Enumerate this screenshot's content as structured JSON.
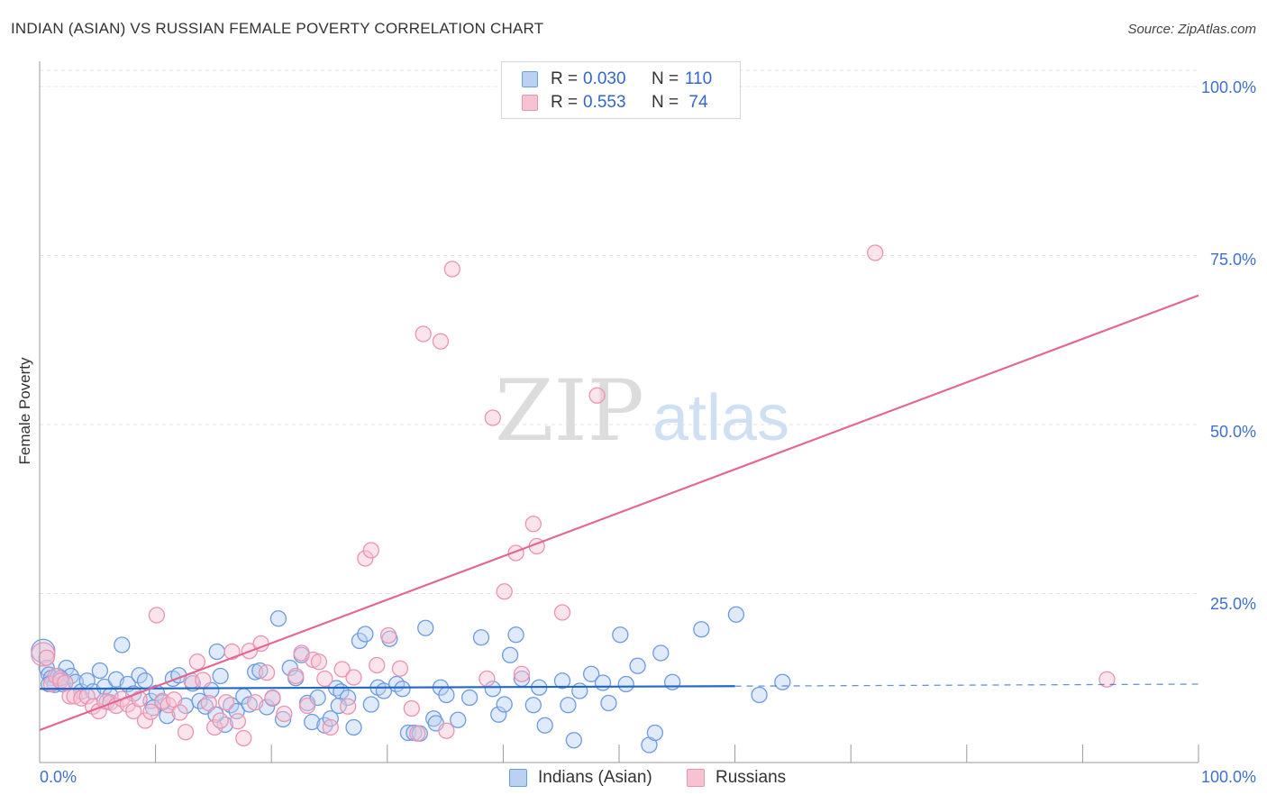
{
  "header": {
    "title": "INDIAN (ASIAN) VS RUSSIAN FEMALE POVERTY CORRELATION CHART",
    "source": "Source: ZipAtlas.com"
  },
  "watermark": {
    "zip": "ZIP",
    "atlas": "atlas"
  },
  "legend": {
    "rows": [
      {
        "r_label": "R =",
        "r_value": "0.030",
        "n_label": "N =",
        "n_value": "110"
      },
      {
        "r_label": "R =",
        "r_value": "0.553",
        "n_label": "N =",
        "n_value": "74"
      }
    ]
  },
  "chart_data": {
    "type": "scatter",
    "ylabel": "Female Poverty",
    "xlim": [
      0,
      100
    ],
    "ylim": [
      0,
      100
    ],
    "x_tick_labels": [
      "0.0%",
      "100.0%"
    ],
    "y_tick_labels": [
      "100.0%",
      "75.0%",
      "50.0%",
      "25.0%"
    ],
    "y_ticks": [
      100,
      75,
      50,
      25
    ],
    "grid": true,
    "legend_position": "top-center",
    "series": [
      {
        "name": "Indians (Asian)",
        "color": "#6e9be0",
        "fill": "#b9d1f3",
        "trend": {
          "x0": 0,
          "y0": 10.9,
          "x1": 60,
          "y1": 11.3,
          "dashed_to_x": 100,
          "dashed_to_y": 11.6,
          "color": "#1f66c9"
        },
        "points": [
          [
            0.3,
            16.5
          ],
          [
            0.6,
            14
          ],
          [
            0.8,
            13
          ],
          [
            1,
            12.5
          ],
          [
            1.3,
            11.5
          ],
          [
            1.6,
            12.8
          ],
          [
            2,
            11.6
          ],
          [
            2.3,
            14
          ],
          [
            2.7,
            12.8
          ],
          [
            3.1,
            11.9
          ],
          [
            3.6,
            10.5
          ],
          [
            4.1,
            12.1
          ],
          [
            4.6,
            10.5
          ],
          [
            5.2,
            13.6
          ],
          [
            5.6,
            11.2
          ],
          [
            6.1,
            9.9
          ],
          [
            6.6,
            12.3
          ],
          [
            7.1,
            17.4
          ],
          [
            7.6,
            11.6
          ],
          [
            8.1,
            10.2
          ],
          [
            8.6,
            12.9
          ],
          [
            9.1,
            12.1
          ],
          [
            9.6,
            9.1
          ],
          [
            10.1,
            10.3
          ],
          [
            10.6,
            8.9
          ],
          [
            11,
            6.9
          ],
          [
            11.5,
            12.4
          ],
          [
            12,
            12.9
          ],
          [
            12.6,
            8.4
          ],
          [
            13.2,
            11.7
          ],
          [
            13.8,
            9.1
          ],
          [
            14.3,
            8.3
          ],
          [
            14.8,
            10.7
          ],
          [
            15.3,
            16.4
          ],
          [
            15.6,
            12.8
          ],
          [
            16,
            5.6
          ],
          [
            16.5,
            8.5
          ],
          [
            17,
            7.6
          ],
          [
            17.6,
            9.8
          ],
          [
            18.1,
            8.6
          ],
          [
            18.6,
            13.4
          ],
          [
            19,
            13.6
          ],
          [
            19.6,
            8.2
          ],
          [
            20.1,
            9.5
          ],
          [
            20.6,
            21.3
          ],
          [
            21,
            6.4
          ],
          [
            21.6,
            14
          ],
          [
            22.1,
            12.5
          ],
          [
            22.6,
            15.9
          ],
          [
            23.1,
            8.8
          ],
          [
            23.5,
            6
          ],
          [
            24,
            9.6
          ],
          [
            24.6,
            5.5
          ],
          [
            25.1,
            6.5
          ],
          [
            25.6,
            11
          ],
          [
            26,
            10.5
          ],
          [
            26.6,
            9.6
          ],
          [
            27.1,
            5.2
          ],
          [
            27.6,
            18
          ],
          [
            28.1,
            19
          ],
          [
            28.6,
            8.6
          ],
          [
            29.2,
            11.1
          ],
          [
            29.7,
            10.6
          ],
          [
            30.2,
            18.3
          ],
          [
            30.8,
            11.6
          ],
          [
            31.3,
            10.9
          ],
          [
            31.8,
            4.4
          ],
          [
            32.3,
            4.4
          ],
          [
            32.8,
            4.3
          ],
          [
            33.3,
            19.9
          ],
          [
            34,
            6.5
          ],
          [
            34.6,
            11.1
          ],
          [
            35.1,
            10
          ],
          [
            36.1,
            6.3
          ],
          [
            37.1,
            9.6
          ],
          [
            38.1,
            18.5
          ],
          [
            39.1,
            10.9
          ],
          [
            39.6,
            7.1
          ],
          [
            40.1,
            8.6
          ],
          [
            40.6,
            15.9
          ],
          [
            41.1,
            18.9
          ],
          [
            41.6,
            12.4
          ],
          [
            42.6,
            8.5
          ],
          [
            43.1,
            11.1
          ],
          [
            43.6,
            5.5
          ],
          [
            45.1,
            12.1
          ],
          [
            45.6,
            8.5
          ],
          [
            46.1,
            3.3
          ],
          [
            46.6,
            10.6
          ],
          [
            47.6,
            13.1
          ],
          [
            48.6,
            11.8
          ],
          [
            49.1,
            8.8
          ],
          [
            50.1,
            18.9
          ],
          [
            50.6,
            11.6
          ],
          [
            51.6,
            14.3
          ],
          [
            52.6,
            2.6
          ],
          [
            53.1,
            4.4
          ],
          [
            53.6,
            16.2
          ],
          [
            54.6,
            11.9
          ],
          [
            57.1,
            19.7
          ],
          [
            60.1,
            21.9
          ],
          [
            62.1,
            10
          ],
          [
            64.1,
            11.9
          ],
          [
            0.8,
            11.6
          ],
          [
            1.8,
            12.5
          ],
          [
            5.8,
            9
          ],
          [
            9.8,
            8.1
          ],
          [
            15.2,
            7.1
          ],
          [
            25.8,
            8.4
          ],
          [
            34.2,
            5.8
          ]
        ]
      },
      {
        "name": "Russians",
        "color": "#ec93b0",
        "fill": "#f7c3d3",
        "trend": {
          "x0": 0,
          "y0": 4.8,
          "x1": 100,
          "y1": 69.1,
          "color": "#e26592"
        },
        "points": [
          [
            0.3,
            16
          ],
          [
            0.6,
            15.5
          ],
          [
            1,
            11.6
          ],
          [
            1.4,
            12.8
          ],
          [
            1.8,
            12.1
          ],
          [
            2.2,
            11.8
          ],
          [
            2.6,
            9.8
          ],
          [
            3,
            9.8
          ],
          [
            3.6,
            9.5
          ],
          [
            4.1,
            9.8
          ],
          [
            4.6,
            8.3
          ],
          [
            5.1,
            7.6
          ],
          [
            5.6,
            9.1
          ],
          [
            6.1,
            8.9
          ],
          [
            6.6,
            8.4
          ],
          [
            7.1,
            9.4
          ],
          [
            7.6,
            8.6
          ],
          [
            8.1,
            7.6
          ],
          [
            8.6,
            9.4
          ],
          [
            9.1,
            6.2
          ],
          [
            9.6,
            7.5
          ],
          [
            10.1,
            21.8
          ],
          [
            10.6,
            9.1
          ],
          [
            11.1,
            8.5
          ],
          [
            11.6,
            9.3
          ],
          [
            12.1,
            7.4
          ],
          [
            12.6,
            4.5
          ],
          [
            13.1,
            12.1
          ],
          [
            13.6,
            14.9
          ],
          [
            14.1,
            12.2
          ],
          [
            14.6,
            8.8
          ],
          [
            15.1,
            5.2
          ],
          [
            15.6,
            6.2
          ],
          [
            16.1,
            8.9
          ],
          [
            16.6,
            16.4
          ],
          [
            17.1,
            6.1
          ],
          [
            17.6,
            3.6
          ],
          [
            18.1,
            16.5
          ],
          [
            18.6,
            8.9
          ],
          [
            19.1,
            17.6
          ],
          [
            19.6,
            13.3
          ],
          [
            20.1,
            9.6
          ],
          [
            21.1,
            7.2
          ],
          [
            22.1,
            12.8
          ],
          [
            22.6,
            16.2
          ],
          [
            23.1,
            8.4
          ],
          [
            23.6,
            15.2
          ],
          [
            24.1,
            14.9
          ],
          [
            24.6,
            12.4
          ],
          [
            25.1,
            5.2
          ],
          [
            26.1,
            13.8
          ],
          [
            26.6,
            8.3
          ],
          [
            27.1,
            12.6
          ],
          [
            28.1,
            30.2
          ],
          [
            28.6,
            31.4
          ],
          [
            29.1,
            14.4
          ],
          [
            30.1,
            18.8
          ],
          [
            31.1,
            13.9
          ],
          [
            32.1,
            8
          ],
          [
            32.6,
            4.3
          ],
          [
            33.1,
            63.4
          ],
          [
            34.6,
            62.3
          ],
          [
            35.1,
            4.7
          ],
          [
            35.6,
            73
          ],
          [
            38.6,
            12.4
          ],
          [
            39.1,
            51
          ],
          [
            40.1,
            25.3
          ],
          [
            41.1,
            31
          ],
          [
            41.6,
            13.1
          ],
          [
            42.6,
            35.3
          ],
          [
            42.9,
            32
          ],
          [
            45.1,
            22.2
          ],
          [
            48.1,
            54.3
          ],
          [
            72.1,
            75.4
          ],
          [
            92.1,
            12.3
          ]
        ]
      }
    ]
  }
}
